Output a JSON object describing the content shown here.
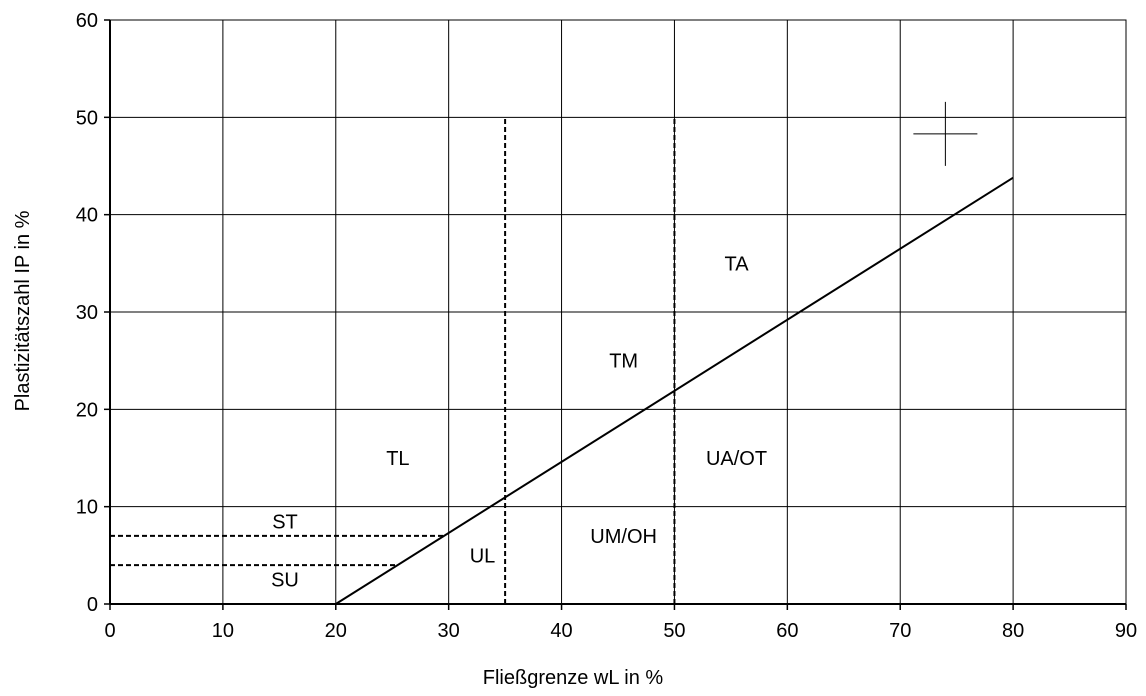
{
  "chart_data": {
    "type": "line",
    "xlabel": "Fließgrenze wL in %",
    "ylabel": "Plastizitätszahl IP in %",
    "xlim": [
      0,
      90
    ],
    "ylim": [
      0,
      60
    ],
    "x_ticks": [
      0,
      10,
      20,
      30,
      40,
      50,
      60,
      70,
      80,
      90
    ],
    "y_ticks": [
      0,
      10,
      20,
      30,
      40,
      50,
      60
    ],
    "grid": true,
    "a_line": {
      "x": [
        20,
        80
      ],
      "y": [
        0,
        43.8
      ]
    },
    "dashed_lines": [
      {
        "name": "wL35",
        "x": [
          35,
          35
        ],
        "y": [
          0,
          50
        ]
      },
      {
        "name": "wL50",
        "x": [
          50,
          50
        ],
        "y": [
          0,
          50
        ]
      },
      {
        "name": "IP7",
        "x": [
          0,
          29.6
        ],
        "y": [
          7,
          7
        ]
      },
      {
        "name": "IP4",
        "x": [
          0,
          25.5
        ],
        "y": [
          4,
          4
        ]
      }
    ],
    "crosshair": {
      "x": 74,
      "y": 48.3
    },
    "regions": [
      {
        "label": "TA",
        "x": 55.5,
        "y": 35
      },
      {
        "label": "TM",
        "x": 45.5,
        "y": 25
      },
      {
        "label": "TL",
        "x": 25.5,
        "y": 15
      },
      {
        "label": "UA/OT",
        "x": 55.5,
        "y": 15
      },
      {
        "label": "UM/OH",
        "x": 45.5,
        "y": 7
      },
      {
        "label": "UL",
        "x": 33,
        "y": 5
      },
      {
        "label": "ST",
        "x": 15.5,
        "y": 8.5
      },
      {
        "label": "SU",
        "x": 15.5,
        "y": 2.5
      }
    ]
  }
}
